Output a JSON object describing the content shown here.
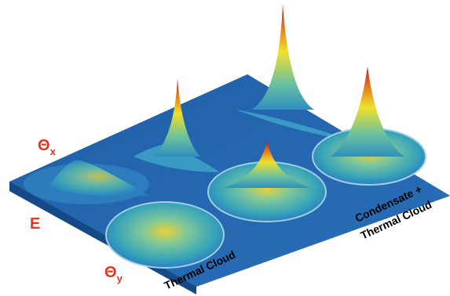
{
  "labels": {
    "theta_x": {
      "symbol": "Θ",
      "subscript": "x"
    },
    "energy": "E",
    "theta_y": {
      "symbol": "Θ",
      "subscript": "y"
    }
  },
  "annotations": {
    "thermal_cloud": "Thermal Cloud",
    "condensate": [
      "Condensate +",
      "Thermal Cloud"
    ]
  }
}
